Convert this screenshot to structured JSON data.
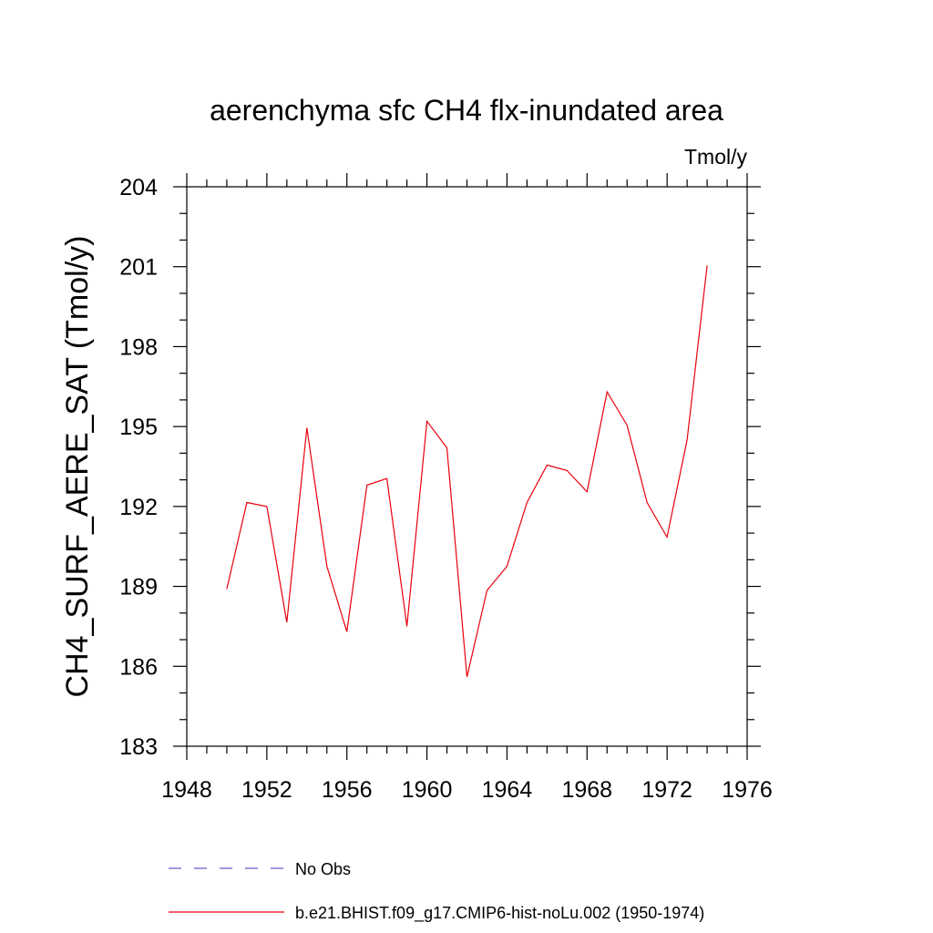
{
  "chart_data": {
    "type": "line",
    "title": "aerenchyma sfc CH4 flx-inundated area",
    "units": "Tmol/y",
    "xlabel": "",
    "ylabel": "CH4_SURF_AERE_SAT  (Tmol/y)",
    "xlim": [
      1948,
      1976
    ],
    "ylim": [
      183,
      204
    ],
    "x_ticks": [
      1948,
      1952,
      1956,
      1960,
      1964,
      1968,
      1972,
      1976
    ],
    "x_minor_step": 1,
    "y_ticks": [
      183,
      186,
      189,
      192,
      195,
      198,
      201,
      204
    ],
    "y_minor_step": 1,
    "grid": false,
    "legend_position": "bottom-left",
    "legend": [
      {
        "name": "No Obs",
        "color": "#6a5acd",
        "dash": "dashed"
      },
      {
        "name": "b.e21.BHIST.f09_g17.CMIP6-hist-noLu.002 (1950-1974)",
        "color": "#e8000b",
        "dash": "solid"
      }
    ],
    "series": [
      {
        "name": "b.e21.BHIST.f09_g17.CMIP6-hist-noLu.002 (1950-1974)",
        "color": "#e8000b",
        "x": [
          1950,
          1951,
          1952,
          1953,
          1954,
          1955,
          1956,
          1957,
          1958,
          1959,
          1960,
          1961,
          1962,
          1963,
          1964,
          1965,
          1966,
          1967,
          1968,
          1969,
          1970,
          1971,
          1972,
          1973,
          1974
        ],
        "y": [
          188.9,
          192.15,
          192.0,
          187.65,
          194.95,
          189.75,
          187.3,
          192.8,
          193.05,
          187.5,
          195.2,
          194.2,
          185.6,
          188.85,
          189.75,
          192.15,
          193.55,
          193.35,
          192.55,
          196.3,
          195.05,
          192.15,
          190.85,
          194.5,
          201.05
        ]
      }
    ]
  }
}
